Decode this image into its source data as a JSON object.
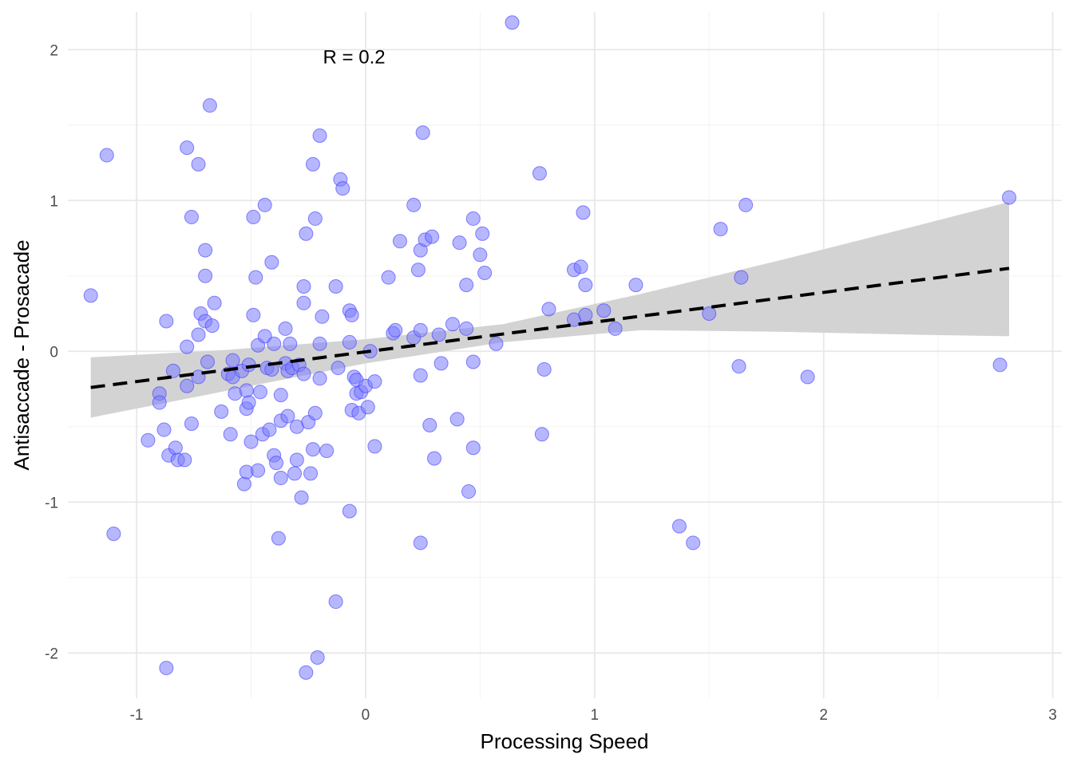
{
  "chart_data": {
    "type": "scatter",
    "xlabel": "Processing Speed",
    "ylabel": "Antisaccade - Prosacade",
    "xlim": [
      -1.3,
      3.04
    ],
    "ylim": [
      -2.3,
      2.25
    ],
    "x_ticks": [
      -1,
      0,
      1,
      2,
      3
    ],
    "y_ticks": [
      -2,
      -1,
      0,
      1,
      2
    ],
    "x_tick_labels": [
      "-1",
      "0",
      "1",
      "2",
      "3"
    ],
    "y_tick_labels": [
      "-2",
      "-1",
      "0",
      "1",
      "2"
    ],
    "grid": true,
    "annotation": {
      "text": "R = 0.2",
      "x": -0.05,
      "y": 1.95
    },
    "point_color": "#7b7bff",
    "point_stroke": "#3a3aff",
    "trend_line": {
      "style": "dashed",
      "color": "#000000",
      "x": [
        -1.2,
        2.81
      ],
      "y": [
        -0.24,
        0.55
      ]
    },
    "confidence_band": {
      "color": "#d3d3d3",
      "x": [
        -1.2,
        -0.6,
        0.0,
        0.6,
        1.2,
        1.8,
        2.4,
        2.81
      ],
      "upper": [
        -0.04,
        0.01,
        0.08,
        0.18,
        0.38,
        0.6,
        0.83,
        0.99
      ],
      "lower": [
        -0.44,
        -0.26,
        -0.08,
        0.06,
        0.14,
        0.13,
        0.11,
        0.1
      ]
    },
    "points": [
      {
        "x": -1.2,
        "y": 0.37
      },
      {
        "x": -1.13,
        "y": 1.3
      },
      {
        "x": -1.1,
        "y": -1.21
      },
      {
        "x": -0.95,
        "y": -0.59
      },
      {
        "x": -0.9,
        "y": -0.28
      },
      {
        "x": -0.9,
        "y": -0.34
      },
      {
        "x": -0.88,
        "y": -0.52
      },
      {
        "x": -0.87,
        "y": 0.2
      },
      {
        "x": -0.87,
        "y": -2.1
      },
      {
        "x": -0.86,
        "y": -0.69
      },
      {
        "x": -0.84,
        "y": -0.13
      },
      {
        "x": -0.83,
        "y": -0.64
      },
      {
        "x": -0.82,
        "y": -0.72
      },
      {
        "x": -0.79,
        "y": -0.72
      },
      {
        "x": -0.78,
        "y": 0.03
      },
      {
        "x": -0.78,
        "y": -0.23
      },
      {
        "x": -0.78,
        "y": 1.35
      },
      {
        "x": -0.76,
        "y": 0.89
      },
      {
        "x": -0.76,
        "y": -0.48
      },
      {
        "x": -0.73,
        "y": 1.24
      },
      {
        "x": -0.73,
        "y": 0.11
      },
      {
        "x": -0.72,
        "y": 0.25
      },
      {
        "x": -0.73,
        "y": -0.17
      },
      {
        "x": -0.7,
        "y": 0.67
      },
      {
        "x": -0.7,
        "y": 0.5
      },
      {
        "x": -0.7,
        "y": 0.2
      },
      {
        "x": -0.69,
        "y": -0.07
      },
      {
        "x": -0.68,
        "y": 1.63
      },
      {
        "x": -0.67,
        "y": 0.17
      },
      {
        "x": -0.66,
        "y": 0.32
      },
      {
        "x": -0.63,
        "y": -0.4
      },
      {
        "x": -0.6,
        "y": -0.15
      },
      {
        "x": -0.59,
        "y": -0.55
      },
      {
        "x": -0.58,
        "y": -0.06
      },
      {
        "x": -0.58,
        "y": -0.17
      },
      {
        "x": -0.57,
        "y": -0.28
      },
      {
        "x": -0.54,
        "y": -0.13
      },
      {
        "x": -0.53,
        "y": -0.88
      },
      {
        "x": -0.52,
        "y": -0.8
      },
      {
        "x": -0.52,
        "y": -0.38
      },
      {
        "x": -0.52,
        "y": -0.26
      },
      {
        "x": -0.51,
        "y": -0.09
      },
      {
        "x": -0.51,
        "y": -0.34
      },
      {
        "x": -0.5,
        "y": -0.6
      },
      {
        "x": -0.49,
        "y": 0.89
      },
      {
        "x": -0.49,
        "y": 0.24
      },
      {
        "x": -0.48,
        "y": 0.49
      },
      {
        "x": -0.47,
        "y": -0.79
      },
      {
        "x": -0.47,
        "y": 0.04
      },
      {
        "x": -0.46,
        "y": -0.27
      },
      {
        "x": -0.45,
        "y": -0.55
      },
      {
        "x": -0.44,
        "y": 0.97
      },
      {
        "x": -0.44,
        "y": 0.1
      },
      {
        "x": -0.43,
        "y": -0.11
      },
      {
        "x": -0.42,
        "y": -0.52
      },
      {
        "x": -0.41,
        "y": 0.59
      },
      {
        "x": -0.41,
        "y": -0.12
      },
      {
        "x": -0.4,
        "y": -0.69
      },
      {
        "x": -0.4,
        "y": 0.05
      },
      {
        "x": -0.39,
        "y": -0.74
      },
      {
        "x": -0.38,
        "y": -1.24
      },
      {
        "x": -0.37,
        "y": -0.84
      },
      {
        "x": -0.37,
        "y": -0.46
      },
      {
        "x": -0.37,
        "y": -0.29
      },
      {
        "x": -0.35,
        "y": -0.08
      },
      {
        "x": -0.35,
        "y": 0.15
      },
      {
        "x": -0.34,
        "y": -0.43
      },
      {
        "x": -0.34,
        "y": -0.13
      },
      {
        "x": -0.33,
        "y": 0.05
      },
      {
        "x": -0.32,
        "y": -0.11
      },
      {
        "x": -0.31,
        "y": -0.81
      },
      {
        "x": -0.3,
        "y": -0.5
      },
      {
        "x": -0.3,
        "y": -0.72
      },
      {
        "x": -0.29,
        "y": -0.09
      },
      {
        "x": -0.28,
        "y": -0.97
      },
      {
        "x": -0.27,
        "y": 0.43
      },
      {
        "x": -0.27,
        "y": 0.32
      },
      {
        "x": -0.27,
        "y": -0.15
      },
      {
        "x": -0.26,
        "y": 0.78
      },
      {
        "x": -0.26,
        "y": -2.13
      },
      {
        "x": -0.25,
        "y": -0.47
      },
      {
        "x": -0.24,
        "y": -0.81
      },
      {
        "x": -0.23,
        "y": 1.24
      },
      {
        "x": -0.23,
        "y": -0.65
      },
      {
        "x": -0.22,
        "y": -0.41
      },
      {
        "x": -0.22,
        "y": 0.88
      },
      {
        "x": -0.21,
        "y": -2.03
      },
      {
        "x": -0.2,
        "y": 1.43
      },
      {
        "x": -0.2,
        "y": -0.18
      },
      {
        "x": -0.2,
        "y": 0.05
      },
      {
        "x": -0.19,
        "y": 0.23
      },
      {
        "x": -0.17,
        "y": -0.66
      },
      {
        "x": -0.13,
        "y": 0.43
      },
      {
        "x": -0.13,
        "y": -1.66
      },
      {
        "x": -0.12,
        "y": -0.11
      },
      {
        "x": -0.11,
        "y": 1.14
      },
      {
        "x": -0.1,
        "y": 1.08
      },
      {
        "x": -0.07,
        "y": 0.27
      },
      {
        "x": -0.07,
        "y": 0.06
      },
      {
        "x": -0.07,
        "y": -1.06
      },
      {
        "x": -0.06,
        "y": 0.24
      },
      {
        "x": -0.06,
        "y": -0.39
      },
      {
        "x": -0.05,
        "y": -0.17
      },
      {
        "x": -0.04,
        "y": -0.28
      },
      {
        "x": -0.04,
        "y": -0.19
      },
      {
        "x": -0.03,
        "y": -0.41
      },
      {
        "x": -0.02,
        "y": -0.27
      },
      {
        "x": 0.0,
        "y": -0.23
      },
      {
        "x": 0.01,
        "y": -0.37
      },
      {
        "x": 0.02,
        "y": 0.0
      },
      {
        "x": 0.04,
        "y": -0.2
      },
      {
        "x": 0.04,
        "y": -0.63
      },
      {
        "x": 0.1,
        "y": 0.49
      },
      {
        "x": 0.12,
        "y": 0.12
      },
      {
        "x": 0.13,
        "y": 0.14
      },
      {
        "x": 0.15,
        "y": 0.73
      },
      {
        "x": 0.21,
        "y": 0.97
      },
      {
        "x": 0.21,
        "y": 0.09
      },
      {
        "x": 0.23,
        "y": 0.54
      },
      {
        "x": 0.24,
        "y": 0.14
      },
      {
        "x": 0.24,
        "y": 0.67
      },
      {
        "x": 0.24,
        "y": -1.27
      },
      {
        "x": 0.24,
        "y": -0.16
      },
      {
        "x": 0.25,
        "y": 1.45
      },
      {
        "x": 0.26,
        "y": 0.74
      },
      {
        "x": 0.28,
        "y": -0.49
      },
      {
        "x": 0.29,
        "y": 0.76
      },
      {
        "x": 0.3,
        "y": -0.71
      },
      {
        "x": 0.32,
        "y": 0.11
      },
      {
        "x": 0.33,
        "y": -0.08
      },
      {
        "x": 0.38,
        "y": 0.18
      },
      {
        "x": 0.4,
        "y": -0.45
      },
      {
        "x": 0.41,
        "y": 0.72
      },
      {
        "x": 0.44,
        "y": 0.15
      },
      {
        "x": 0.44,
        "y": 0.44
      },
      {
        "x": 0.45,
        "y": -0.93
      },
      {
        "x": 0.47,
        "y": -0.64
      },
      {
        "x": 0.47,
        "y": -0.07
      },
      {
        "x": 0.47,
        "y": 0.88
      },
      {
        "x": 0.5,
        "y": 0.64
      },
      {
        "x": 0.51,
        "y": 0.78
      },
      {
        "x": 0.52,
        "y": 0.52
      },
      {
        "x": 0.57,
        "y": 0.05
      },
      {
        "x": 0.64,
        "y": 2.18
      },
      {
        "x": 0.76,
        "y": 1.18
      },
      {
        "x": 0.77,
        "y": -0.55
      },
      {
        "x": 0.78,
        "y": -0.12
      },
      {
        "x": 0.8,
        "y": 0.28
      },
      {
        "x": 0.91,
        "y": 0.21
      },
      {
        "x": 0.91,
        "y": 0.54
      },
      {
        "x": 0.94,
        "y": 0.56
      },
      {
        "x": 0.95,
        "y": 0.92
      },
      {
        "x": 0.96,
        "y": 0.24
      },
      {
        "x": 0.96,
        "y": 0.44
      },
      {
        "x": 1.04,
        "y": 0.27
      },
      {
        "x": 1.09,
        "y": 0.15
      },
      {
        "x": 1.18,
        "y": 0.44
      },
      {
        "x": 1.37,
        "y": -1.16
      },
      {
        "x": 1.43,
        "y": -1.27
      },
      {
        "x": 1.5,
        "y": 0.25
      },
      {
        "x": 1.55,
        "y": 0.81
      },
      {
        "x": 1.63,
        "y": -0.1
      },
      {
        "x": 1.64,
        "y": 0.49
      },
      {
        "x": 1.66,
        "y": 0.97
      },
      {
        "x": 1.93,
        "y": -0.17
      },
      {
        "x": 2.77,
        "y": -0.09
      },
      {
        "x": 2.81,
        "y": 1.02
      }
    ]
  }
}
